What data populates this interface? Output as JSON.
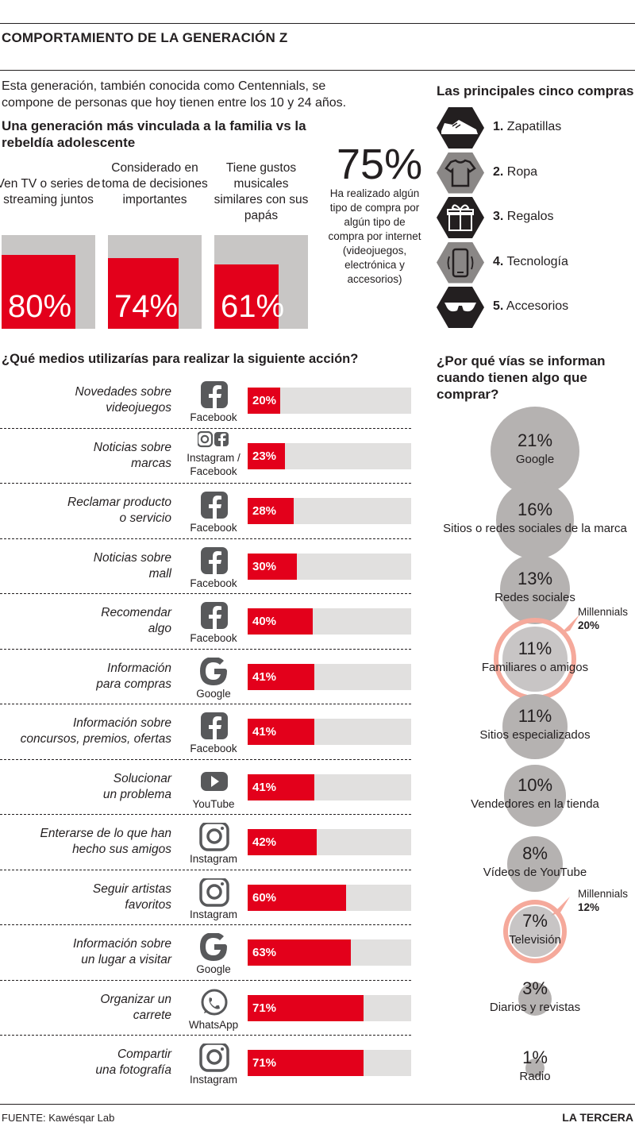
{
  "title": "COMPORTAMIENTO DE LA GENERACIÓN Z",
  "intro": "Esta generación, también conocida como Centennials, se compone de personas que hoy tienen entre los 10 y 24 años.",
  "family": {
    "heading": "Una generación más vinculada a la familia vs la rebeldía adolescente",
    "items": [
      {
        "label": "Ven TV o series de streaming juntos",
        "value": "80%",
        "percent": 80
      },
      {
        "label": "Considerado en toma de decisiones importantes",
        "value": "74%",
        "percent": 74
      },
      {
        "label": "Tiene gustos musicales similares con sus papás",
        "value": "61%",
        "percent": 61
      }
    ],
    "colors": {
      "highlight": "#e3001b",
      "base": "#c8c6c5"
    }
  },
  "online": {
    "value": "75%",
    "description": "Ha realizado algún tipo de compra por algún tipo de compra por internet (videojuegos, electrónica y accesorios)"
  },
  "purchases": {
    "heading": "Las principales cinco compras",
    "items": [
      {
        "num": "1.",
        "label": "Zapatillas",
        "icon": "sneaker-icon"
      },
      {
        "num": "2.",
        "label": "Ropa",
        "icon": "tshirt-icon"
      },
      {
        "num": "3.",
        "label": "Regalos",
        "icon": "gift-icon"
      },
      {
        "num": "4.",
        "label": "Tecnología",
        "icon": "smartphone-icon"
      },
      {
        "num": "5.",
        "label": "Accesorios",
        "icon": "sunglasses-icon"
      }
    ]
  },
  "media": {
    "heading": "¿Qué medios utilizarías para realizar la siguiente acción?",
    "colors": {
      "bar": "#e3001b",
      "track": "#e1e0df"
    }
  },
  "channels": {
    "heading": "¿Por qué vías se informan cuando tienen algo que comprar?",
    "millennials_label": "Millennials",
    "colors": {
      "circle": "#b5b2b1",
      "highlight": "#f5a99b"
    }
  },
  "chart_data": [
    {
      "type": "bar",
      "categories": [
        "Novedades sobre videojuegos",
        "Noticias sobre marcas",
        "Reclamar producto o servicio",
        "Noticias sobre mall",
        "Recomendar algo",
        "Información para compras",
        "Información sobre concursos, premios, ofertas",
        "Solucionar un problema",
        "Enterarse de lo que han hecho sus amigos",
        "Seguir artistas favoritos",
        "Información sobre un lugar a visitar",
        "Organizar un carrete",
        "Compartir una fotografía"
      ],
      "label_lines": [
        [
          "Novedades sobre",
          "videojuegos"
        ],
        [
          "Noticias sobre",
          "marcas"
        ],
        [
          "Reclamar producto",
          "o servicio"
        ],
        [
          "Noticias sobre",
          "mall"
        ],
        [
          "Recomendar",
          "algo"
        ],
        [
          "Información",
          "para compras"
        ],
        [
          "Información sobre",
          "concursos, premios, ofertas"
        ],
        [
          "Solucionar",
          "un problema"
        ],
        [
          "Enterarse de lo que han",
          "hecho sus amigos"
        ],
        [
          "Seguir artistas",
          "favoritos"
        ],
        [
          "Información sobre",
          "un lugar a visitar"
        ],
        [
          "Organizar un",
          "carrete"
        ],
        [
          "Compartir",
          "una fotografía"
        ]
      ],
      "networks": [
        [
          "Facebook"
        ],
        [
          "Instagram /",
          "Facebook"
        ],
        [
          "Facebook"
        ],
        [
          "Facebook"
        ],
        [
          "Facebook"
        ],
        [
          "Google"
        ],
        [
          "Facebook"
        ],
        [
          "YouTube"
        ],
        [
          "Instagram"
        ],
        [
          "Instagram"
        ],
        [
          "Google"
        ],
        [
          "WhatsApp"
        ],
        [
          "Instagram"
        ]
      ],
      "icons": [
        "facebook-icon",
        "instagram-facebook-icon",
        "facebook-icon",
        "facebook-icon",
        "facebook-icon",
        "google-icon",
        "facebook-icon",
        "youtube-icon",
        "instagram-icon",
        "instagram-icon",
        "google-icon",
        "whatsapp-icon",
        "instagram-icon"
      ],
      "values": [
        20,
        23,
        28,
        30,
        40,
        41,
        41,
        41,
        42,
        60,
        63,
        71,
        71
      ],
      "ylim": [
        0,
        100
      ]
    },
    {
      "type": "scatter",
      "categories": [
        "Google",
        "Sitios o redes sociales de la marca",
        "Redes sociales",
        "Familiares o amigos",
        "Sitios especializados",
        "Vendedores en la tienda",
        "Vídeos de YouTube",
        "Televisión",
        "Diarios y revistas",
        "Radio"
      ],
      "values": [
        21,
        16,
        13,
        11,
        11,
        10,
        8,
        7,
        3,
        1
      ],
      "millennials": [
        null,
        null,
        null,
        20,
        null,
        null,
        null,
        12,
        null,
        null
      ]
    }
  ]
}
